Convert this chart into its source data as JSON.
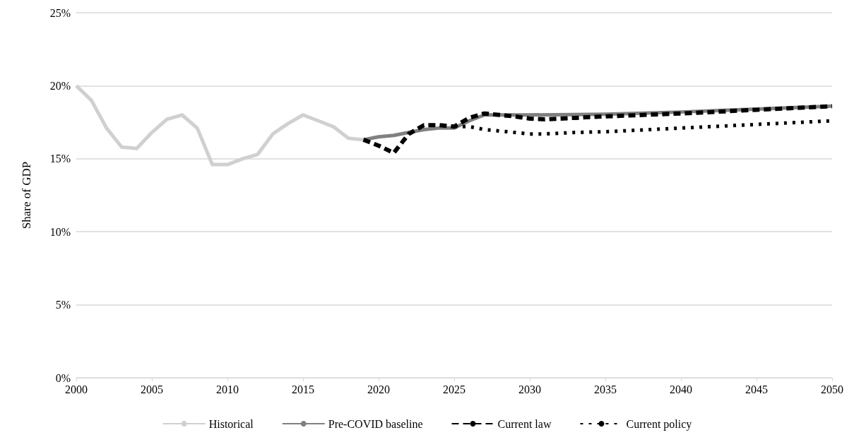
{
  "chart_data": {
    "type": "line",
    "ylabel": "Share of GDP",
    "xlim": [
      2000,
      2050
    ],
    "xticks": [
      2000,
      2005,
      2010,
      2015,
      2020,
      2025,
      2030,
      2035,
      2040,
      2045,
      2050
    ],
    "ylim": [
      0,
      25
    ],
    "yticks": [
      {
        "value": 0,
        "label": "0%"
      },
      {
        "value": 5,
        "label": "5%"
      },
      {
        "value": 10,
        "label": "10%"
      },
      {
        "value": 15,
        "label": "15%"
      },
      {
        "value": 20,
        "label": "20%"
      },
      {
        "value": 25,
        "label": "25%"
      }
    ],
    "grid": "y",
    "legend": "bottom",
    "marker": "none",
    "series": [
      {
        "name": "Historical",
        "color": "#d0d0d0",
        "line_style": "solid",
        "x": [
          2000,
          2001,
          2002,
          2003,
          2004,
          2005,
          2006,
          2007,
          2008,
          2009,
          2010,
          2011,
          2012,
          2013,
          2014,
          2015,
          2016,
          2017,
          2018,
          2019
        ],
        "values": [
          20.0,
          19.0,
          17.1,
          15.8,
          15.7,
          16.8,
          17.7,
          18.0,
          17.1,
          14.6,
          14.6,
          15.0,
          15.3,
          16.7,
          17.4,
          18.0,
          17.6,
          17.2,
          16.4,
          16.3
        ]
      },
      {
        "name": "Pre-COVID baseline",
        "color": "#808080",
        "line_style": "solid",
        "x": [
          2019,
          2020,
          2021,
          2022,
          2023,
          2024,
          2025,
          2026,
          2027,
          2028,
          2029,
          2030,
          2035,
          2040,
          2045,
          2050
        ],
        "values": [
          16.3,
          16.5,
          16.6,
          16.8,
          17.0,
          17.1,
          17.1,
          17.6,
          18.0,
          18.0,
          18.0,
          18.0,
          18.05,
          18.2,
          18.4,
          18.6
        ]
      },
      {
        "name": "Current law",
        "color": "#000000",
        "line_style": "dashed",
        "x": [
          2019,
          2020,
          2021,
          2022,
          2023,
          2024,
          2025,
          2026,
          2027,
          2028,
          2029,
          2030,
          2031,
          2032,
          2033,
          2034,
          2035,
          2040,
          2045,
          2050
        ],
        "values": [
          16.3,
          15.9,
          15.4,
          16.7,
          17.3,
          17.3,
          17.2,
          17.8,
          18.1,
          18.0,
          17.9,
          17.75,
          17.7,
          17.75,
          17.8,
          17.85,
          17.9,
          18.1,
          18.35,
          18.6
        ]
      },
      {
        "name": "Current policy",
        "color": "#000000",
        "line_style": "dotted",
        "x": [
          2025,
          2026,
          2027,
          2028,
          2029,
          2030,
          2031,
          2032,
          2033,
          2035,
          2040,
          2045,
          2050
        ],
        "values": [
          17.2,
          17.2,
          17.0,
          16.9,
          16.8,
          16.7,
          16.7,
          16.75,
          16.8,
          16.85,
          17.1,
          17.35,
          17.6
        ]
      }
    ]
  }
}
